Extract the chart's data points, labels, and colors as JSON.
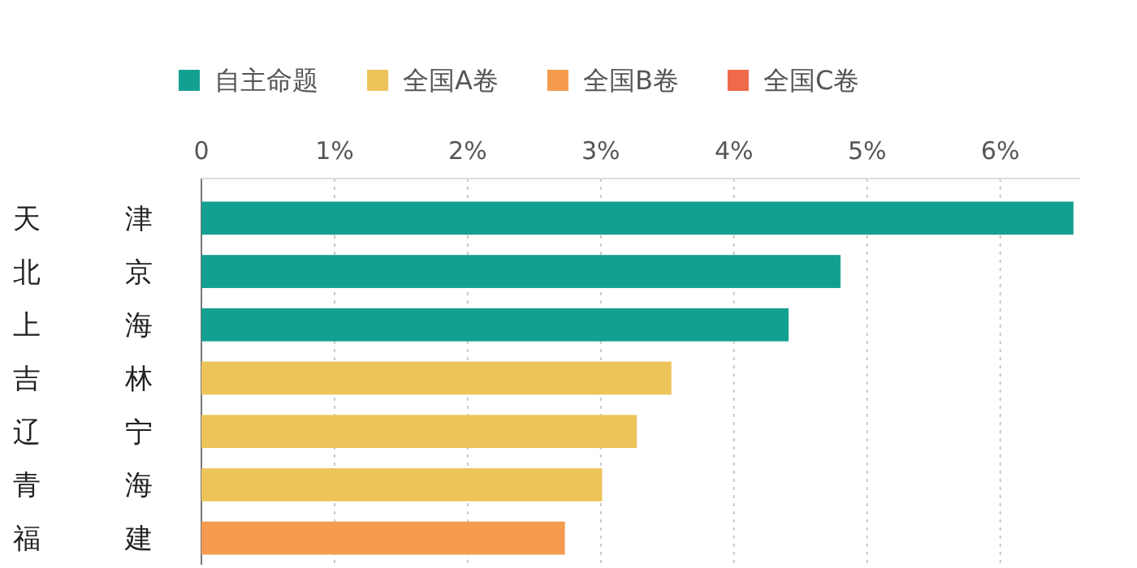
{
  "chart_data": {
    "type": "bar",
    "orientation": "horizontal",
    "categories": [
      "天津",
      "北京",
      "上海",
      "吉林",
      "辽宁",
      "青海",
      "福建"
    ],
    "series": [
      {
        "name": "自主命题",
        "color": "#14a090",
        "values": [
          6.55,
          4.8,
          4.41,
          null,
          null,
          null,
          null
        ]
      },
      {
        "name": "全国A卷",
        "color": "#ecc45a",
        "values": [
          null,
          null,
          null,
          3.53,
          3.27,
          3.01,
          null
        ]
      },
      {
        "name": "全国B卷",
        "color": "#f59b4f",
        "values": [
          null,
          null,
          null,
          null,
          null,
          null,
          2.73
        ]
      },
      {
        "name": "全国C卷",
        "color": "#ee6a4b",
        "values": [
          null,
          null,
          null,
          null,
          null,
          null,
          null
        ]
      }
    ],
    "xlim": [
      0,
      6.6
    ],
    "xticks": [
      0,
      {
        "value": 1,
        "label": "1%"
      },
      {
        "value": 2,
        "label": "2%"
      },
      {
        "value": 3,
        "label": "3%"
      },
      {
        "value": 4,
        "label": "4%"
      },
      {
        "value": 5,
        "label": "5%"
      },
      {
        "value": 6,
        "label": "6%"
      }
    ],
    "grid": "x",
    "legend": "top"
  }
}
